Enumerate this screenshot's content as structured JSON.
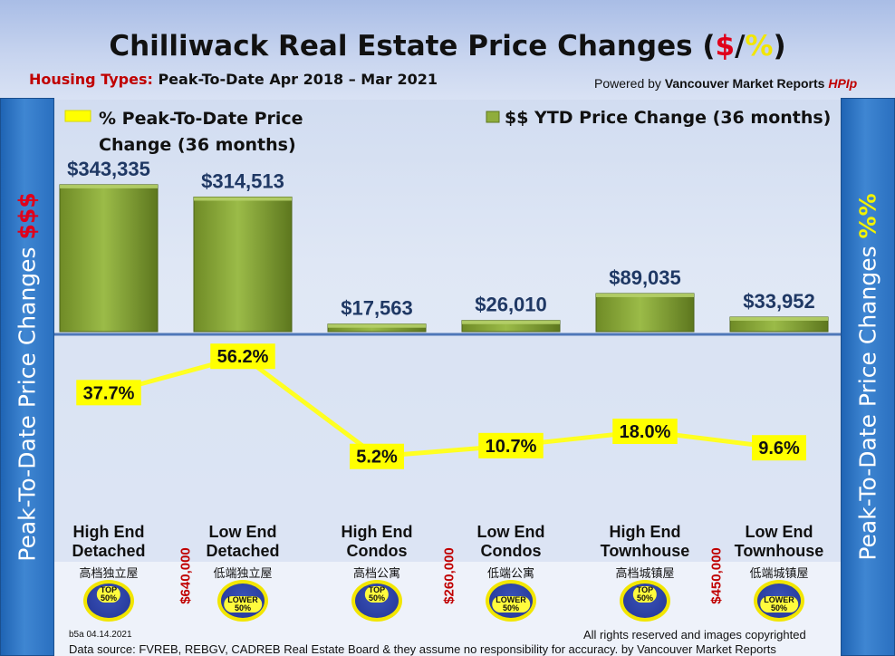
{
  "title": {
    "prefix": "Chilliwack Real Estate Price Changes (",
    "dollar": "$",
    "slash": "/",
    "percent": "%",
    "suffix": ")"
  },
  "subtitle": {
    "label": "Housing Types:",
    "period": "Peak-To-Date Apr 2018 – Mar 2021"
  },
  "powered": {
    "prefix": "Powered by",
    "company": "Vancouver Market Reports",
    "brand": "HPIp"
  },
  "side_left": {
    "text": "Peak-To-Date Price Changes",
    "accent": "$$$"
  },
  "side_right": {
    "text": "Peak-To-Date  Price  Changes",
    "accent": "%%"
  },
  "footer": {
    "version": "b5a 04.14.2021",
    "rights": "All rights reserved and  images copyrighted",
    "source": "Data source: FVREB, REBGV, CADREB Real Estate Board & they assume no responsibility for accuracy. by Vancouver Market Reports"
  },
  "thresholds": [
    "$640,000",
    "$260,000",
    "$450,000"
  ],
  "categories_cn": [
    "高档独立屋",
    "低端独立屋",
    "高档公寓",
    "低端公寓",
    "高档城镇屋",
    "低端城镇屋"
  ],
  "badges": [
    {
      "label": "TOP\n50%",
      "kind": "top"
    },
    {
      "label": "LOWER\n50%",
      "kind": "lower"
    },
    {
      "label": "TOP\n50%",
      "kind": "top"
    },
    {
      "label": "LOWER\n50%",
      "kind": "lower"
    },
    {
      "label": "TOP\n50%",
      "kind": "top"
    },
    {
      "label": "LOWER\n50%",
      "kind": "lower"
    }
  ],
  "colors": {
    "bar": "#8fad3c",
    "line": "#ffff22",
    "label_box": "#ffff00",
    "side_panel": "#2f78c8",
    "dollar_accent": "#e0001a",
    "percent_accent": "#f2e600"
  },
  "chart_data": {
    "type": "bar",
    "categories": [
      "High End\nDetached",
      "Low End\nDetached",
      "High End\nCondos",
      "Low End\nCondos",
      "High End\nTownhouse",
      "Low End\nTownhouse"
    ],
    "series": [
      {
        "name": "$$ YTD Price Change (36 months)",
        "type": "bar",
        "values": [
          343335,
          314513,
          17563,
          26010,
          89035,
          33952
        ],
        "labels": [
          "$343,335",
          "$314,513",
          "$17,563",
          "$26,010",
          "$89,035",
          "$33,952"
        ]
      },
      {
        "name": "% Peak-To-Date Price Change (36 months)",
        "type": "line",
        "values": [
          37.7,
          56.2,
          5.2,
          10.7,
          18.0,
          9.6
        ],
        "labels": [
          "37.7%",
          "56.2%",
          "5.2%",
          "10.7%",
          "18.0%",
          "9.6%"
        ]
      }
    ],
    "legend": {
      "pct_line1": "% Peak-To-Date Price",
      "pct_line2": "Change (36 months)",
      "usd": "$$ YTD Price Change (36 months)",
      "placement": "top"
    },
    "grid": false
  }
}
